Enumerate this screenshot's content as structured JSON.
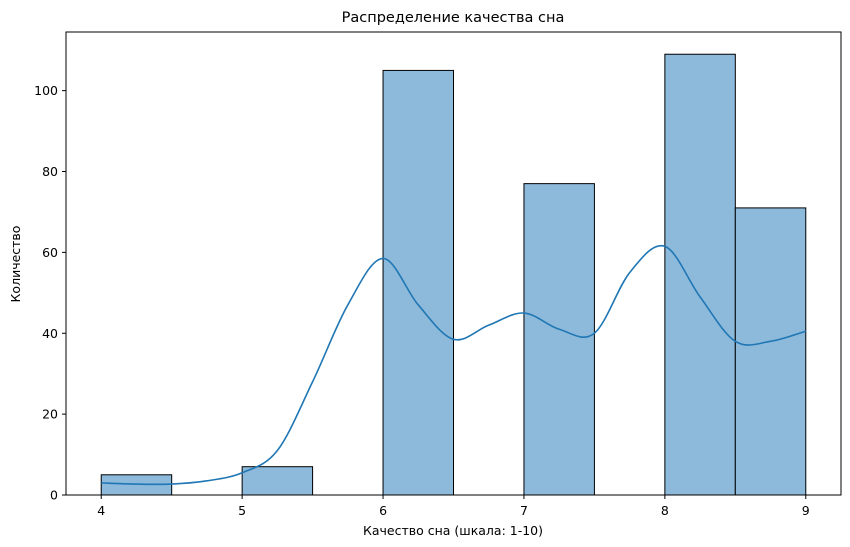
{
  "chart_data": {
    "type": "bar",
    "title": "Распределение качества сна",
    "xlabel": "Качество сна (шкала: 1-10)",
    "ylabel": "Количество",
    "xlim": [
      3.75,
      9.25
    ],
    "ylim": [
      0,
      114.5
    ],
    "xticks": [
      4,
      5,
      6,
      7,
      8,
      9
    ],
    "yticks": [
      0,
      20,
      40,
      60,
      80,
      100
    ],
    "grid": false,
    "legend": "none",
    "bar_color": "#8db9db",
    "line_color": "#1f77b4",
    "bins": [
      {
        "x0": 4.0,
        "x1": 4.5,
        "count": 5
      },
      {
        "x0": 4.5,
        "x1": 5.0,
        "count": 0
      },
      {
        "x0": 5.0,
        "x1": 5.5,
        "count": 7
      },
      {
        "x0": 5.5,
        "x1": 6.0,
        "count": 0
      },
      {
        "x0": 6.0,
        "x1": 6.5,
        "count": 105
      },
      {
        "x0": 6.5,
        "x1": 7.0,
        "count": 0
      },
      {
        "x0": 7.0,
        "x1": 7.5,
        "count": 77
      },
      {
        "x0": 7.5,
        "x1": 8.0,
        "count": 0
      },
      {
        "x0": 8.0,
        "x1": 8.5,
        "count": 109
      },
      {
        "x0": 8.5,
        "x1": 9.0,
        "count": 71
      }
    ],
    "kde": {
      "x": [
        4.0,
        4.25,
        4.5,
        4.75,
        5.0,
        5.25,
        5.5,
        5.75,
        6.0,
        6.25,
        6.5,
        6.75,
        7.0,
        7.25,
        7.5,
        7.75,
        8.0,
        8.25,
        8.5,
        8.75,
        9.0
      ],
      "y": [
        3,
        2.7,
        2.7,
        3.5,
        5.5,
        11,
        28,
        47,
        58.5,
        47,
        38.5,
        42,
        45,
        41,
        40,
        55,
        61.5,
        49,
        38,
        38,
        40.5
      ]
    }
  }
}
